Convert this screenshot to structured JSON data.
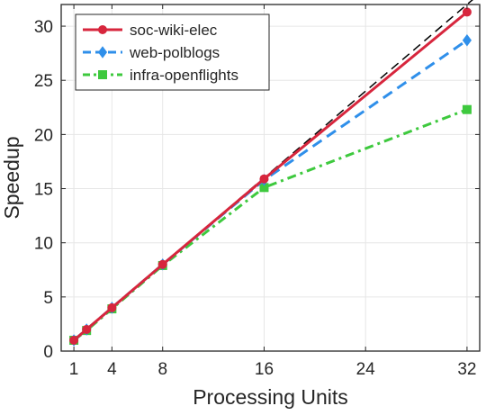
{
  "chart_data": {
    "type": "line",
    "xlabel": "Processing Units",
    "ylabel": "Speedup",
    "xlim": [
      0,
      33
    ],
    "ylim": [
      0,
      32
    ],
    "xticks": [
      1,
      4,
      8,
      16,
      24,
      32
    ],
    "yticks": [
      0,
      5,
      10,
      15,
      20,
      25,
      30
    ],
    "grid": true,
    "legend_position": "top-left",
    "reference_line": {
      "style": "dashed",
      "color": "#000000",
      "x": [
        1,
        33
      ],
      "y": [
        1,
        33
      ]
    },
    "series": [
      {
        "name": "soc-wiki-elec",
        "color": "#d7263d",
        "marker": "circle",
        "line_style": "solid",
        "x": [
          1,
          2,
          4,
          8,
          16,
          32
        ],
        "y": [
          1.0,
          2.0,
          4.0,
          8.0,
          15.9,
          31.3
        ]
      },
      {
        "name": "web-polblogs",
        "color": "#2f8fea",
        "marker": "diamond",
        "line_style": "dashed",
        "x": [
          1,
          2,
          4,
          8,
          16,
          32
        ],
        "y": [
          1.0,
          2.0,
          4.0,
          8.0,
          15.8,
          28.7
        ]
      },
      {
        "name": "infra-openflights",
        "color": "#3ec93e",
        "marker": "square",
        "line_style": "dashdot",
        "x": [
          1,
          2,
          4,
          8,
          16,
          32
        ],
        "y": [
          1.0,
          1.9,
          3.9,
          7.9,
          15.1,
          22.3
        ]
      }
    ]
  }
}
